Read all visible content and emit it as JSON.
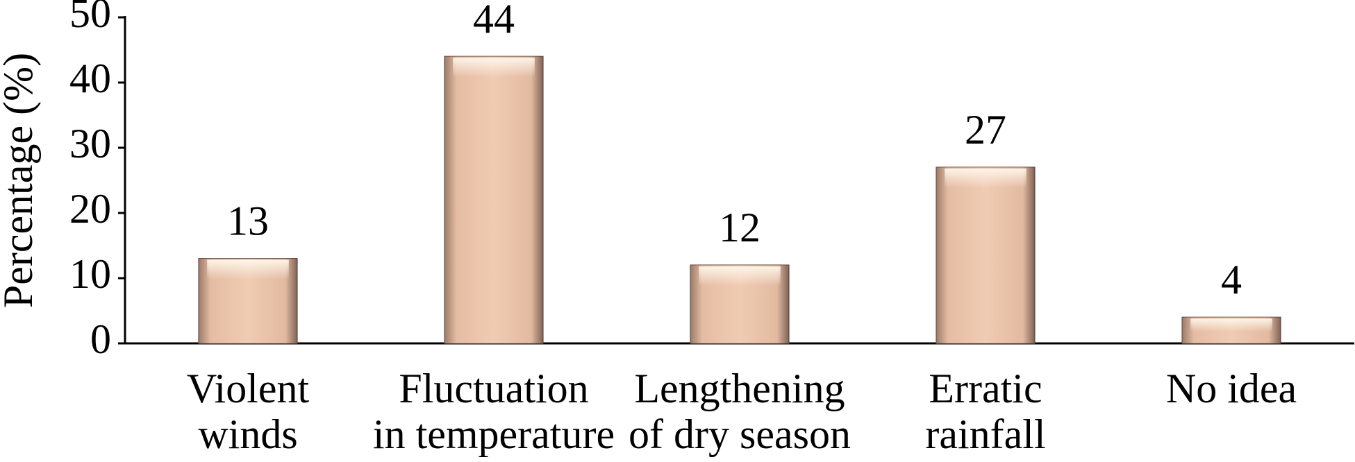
{
  "chart_data": {
    "type": "bar",
    "y_label": "Percentage (%)",
    "categories": [
      [
        "Violent",
        "winds"
      ],
      [
        "Fluctuation",
        "in temperature"
      ],
      [
        "Lengthening",
        "of dry season"
      ],
      [
        "Erratic",
        "rainfall"
      ],
      [
        "No idea"
      ]
    ],
    "values": [
      13,
      44,
      12,
      27,
      4
    ],
    "color": "#ebc3a9",
    "ylim": [
      0,
      50
    ],
    "yticks": [
      0,
      10,
      20,
      30,
      40,
      50
    ],
    "grid": false
  }
}
